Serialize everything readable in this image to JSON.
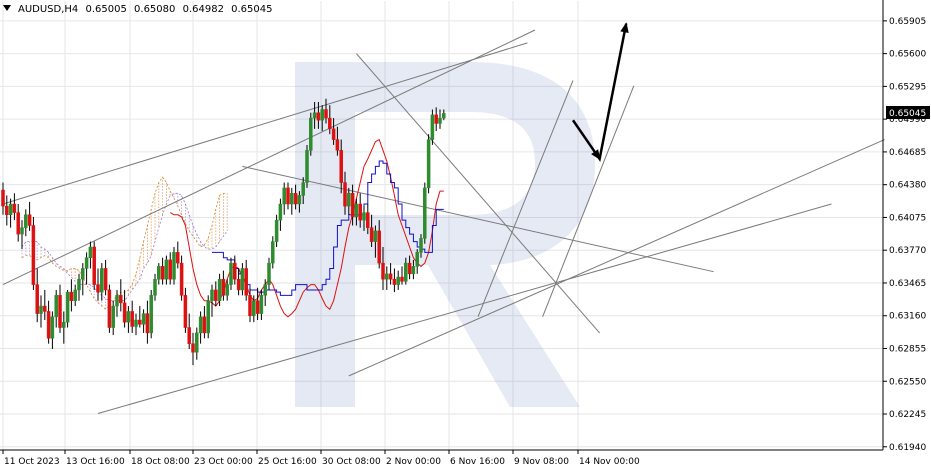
{
  "header": {
    "symbol": "AUDUSD,H4",
    "open": "0.65005",
    "high": "0.65080",
    "low": "0.64982",
    "close": "0.65045"
  },
  "price_tag": "0.65045",
  "chart_data": {
    "type": "candlestick",
    "symbol": "AUDUSD",
    "timeframe": "H4",
    "y_ticks": [
      "0.65905",
      "0.65600",
      "0.65295",
      "0.64990",
      "0.64685",
      "0.64380",
      "0.64075",
      "0.63770",
      "0.63465",
      "0.63160",
      "0.62855",
      "0.62550",
      "0.62245",
      "0.61940"
    ],
    "ylim": [
      0.6191,
      0.6609
    ],
    "x_labels": [
      "11 Oct 2023",
      "13 Oct 16:00",
      "18 Oct 08:00",
      "23 Oct 00:00",
      "25 Oct 16:00",
      "30 Oct 08:00",
      "2 Nov 00:00",
      "6 Nov 16:00",
      "9 Nov 08:00",
      "14 Nov 00:00"
    ],
    "colors": {
      "up": "#2e8b2e",
      "down": "#dd1111",
      "tenkan": "#dd1111",
      "kijun": "#1111cc",
      "cloud": "#d9822b",
      "cloud_alt": "#9a7bc8",
      "lines": "#7a7a7a",
      "arrow": "#000000",
      "grid": "#e6e6e6"
    },
    "candles": [
      [
        0.6433,
        0.644,
        0.641,
        0.6418
      ],
      [
        0.6418,
        0.6428,
        0.64,
        0.641
      ],
      [
        0.641,
        0.6425,
        0.6398,
        0.642
      ],
      [
        0.642,
        0.643,
        0.6405,
        0.6412
      ],
      [
        0.6412,
        0.642,
        0.6385,
        0.6392
      ],
      [
        0.6392,
        0.6405,
        0.6378,
        0.6398
      ],
      [
        0.6398,
        0.6415,
        0.639,
        0.641
      ],
      [
        0.641,
        0.6422,
        0.6395,
        0.64
      ],
      [
        0.64,
        0.6408,
        0.634,
        0.6345
      ],
      [
        0.6345,
        0.636,
        0.631,
        0.6318
      ],
      [
        0.6318,
        0.6335,
        0.6305,
        0.6325
      ],
      [
        0.6325,
        0.634,
        0.6312,
        0.632
      ],
      [
        0.632,
        0.633,
        0.629,
        0.6295
      ],
      [
        0.6295,
        0.632,
        0.6285,
        0.6315
      ],
      [
        0.6315,
        0.634,
        0.6305,
        0.6335
      ],
      [
        0.6335,
        0.6345,
        0.63,
        0.6305
      ],
      [
        0.6305,
        0.632,
        0.629,
        0.631
      ],
      [
        0.631,
        0.634,
        0.6305,
        0.6338
      ],
      [
        0.6338,
        0.635,
        0.632,
        0.633
      ],
      [
        0.633,
        0.6345,
        0.6325,
        0.634
      ],
      [
        0.634,
        0.6355,
        0.633,
        0.635
      ],
      [
        0.635,
        0.6365,
        0.6335,
        0.636
      ],
      [
        0.636,
        0.6375,
        0.6345,
        0.637
      ],
      [
        0.637,
        0.6385,
        0.636,
        0.638
      ],
      [
        0.638,
        0.6385,
        0.634,
        0.6345
      ],
      [
        0.6345,
        0.636,
        0.633,
        0.6338
      ],
      [
        0.6338,
        0.6365,
        0.633,
        0.636
      ],
      [
        0.636,
        0.6368,
        0.6335,
        0.634
      ],
      [
        0.634,
        0.6345,
        0.63,
        0.6305
      ],
      [
        0.6305,
        0.633,
        0.6298,
        0.6325
      ],
      [
        0.6325,
        0.634,
        0.6315,
        0.6335
      ],
      [
        0.6335,
        0.635,
        0.632,
        0.6328
      ],
      [
        0.6328,
        0.634,
        0.6305,
        0.631
      ],
      [
        0.631,
        0.6325,
        0.63,
        0.632
      ],
      [
        0.632,
        0.633,
        0.63,
        0.6306
      ],
      [
        0.6306,
        0.6318,
        0.6298,
        0.6312
      ],
      [
        0.6312,
        0.6325,
        0.6305,
        0.6308
      ],
      [
        0.6308,
        0.6322,
        0.63,
        0.6318
      ],
      [
        0.6318,
        0.633,
        0.629,
        0.63
      ],
      [
        0.63,
        0.634,
        0.6295,
        0.6335
      ],
      [
        0.6335,
        0.6355,
        0.633,
        0.635
      ],
      [
        0.635,
        0.6365,
        0.6345,
        0.6362
      ],
      [
        0.6362,
        0.637,
        0.6345,
        0.635
      ],
      [
        0.635,
        0.6372,
        0.6345,
        0.6368
      ],
      [
        0.6368,
        0.6375,
        0.6345,
        0.635
      ],
      [
        0.635,
        0.638,
        0.6345,
        0.6375
      ],
      [
        0.6375,
        0.6385,
        0.636,
        0.6365
      ],
      [
        0.6365,
        0.6372,
        0.633,
        0.6335
      ],
      [
        0.6335,
        0.6342,
        0.63,
        0.6305
      ],
      [
        0.6305,
        0.6318,
        0.6285,
        0.629
      ],
      [
        0.629,
        0.63,
        0.627,
        0.6282
      ],
      [
        0.6282,
        0.6305,
        0.6275,
        0.63
      ],
      [
        0.63,
        0.632,
        0.629,
        0.6315
      ],
      [
        0.6315,
        0.6325,
        0.6295,
        0.63
      ],
      [
        0.63,
        0.6335,
        0.6295,
        0.633
      ],
      [
        0.633,
        0.6345,
        0.6315,
        0.634
      ],
      [
        0.634,
        0.6348,
        0.6325,
        0.633
      ],
      [
        0.633,
        0.6355,
        0.6325,
        0.635
      ],
      [
        0.635,
        0.6358,
        0.633,
        0.6335
      ],
      [
        0.6335,
        0.635,
        0.633,
        0.6345
      ],
      [
        0.6345,
        0.637,
        0.634,
        0.6365
      ],
      [
        0.6365,
        0.6372,
        0.6345,
        0.635
      ],
      [
        0.635,
        0.636,
        0.6335,
        0.634
      ],
      [
        0.634,
        0.6365,
        0.6335,
        0.636
      ],
      [
        0.636,
        0.6368,
        0.633,
        0.6335
      ],
      [
        0.6335,
        0.6342,
        0.631,
        0.6316
      ],
      [
        0.6316,
        0.6335,
        0.631,
        0.633
      ],
      [
        0.633,
        0.6342,
        0.6312,
        0.6318
      ],
      [
        0.6318,
        0.634,
        0.6312,
        0.6335
      ],
      [
        0.6335,
        0.635,
        0.6325,
        0.6345
      ],
      [
        0.6345,
        0.637,
        0.634,
        0.6365
      ],
      [
        0.6365,
        0.639,
        0.636,
        0.6385
      ],
      [
        0.6385,
        0.641,
        0.638,
        0.6405
      ],
      [
        0.6405,
        0.6425,
        0.6395,
        0.642
      ],
      [
        0.642,
        0.644,
        0.641,
        0.6435
      ],
      [
        0.6435,
        0.644,
        0.6415,
        0.642
      ],
      [
        0.642,
        0.6435,
        0.641,
        0.643
      ],
      [
        0.643,
        0.6438,
        0.6415,
        0.642
      ],
      [
        0.642,
        0.6432,
        0.6412,
        0.6428
      ],
      [
        0.6428,
        0.6445,
        0.642,
        0.644
      ],
      [
        0.644,
        0.6475,
        0.6435,
        0.647
      ],
      [
        0.647,
        0.6505,
        0.6465,
        0.65
      ],
      [
        0.65,
        0.6515,
        0.649,
        0.6505
      ],
      [
        0.6505,
        0.6515,
        0.649,
        0.6498
      ],
      [
        0.6498,
        0.6512,
        0.6488,
        0.6508
      ],
      [
        0.6508,
        0.6518,
        0.6495,
        0.65
      ],
      [
        0.65,
        0.6512,
        0.6485,
        0.649
      ],
      [
        0.649,
        0.65,
        0.6475,
        0.648
      ],
      [
        0.648,
        0.6492,
        0.6465,
        0.647
      ],
      [
        0.647,
        0.648,
        0.643,
        0.644
      ],
      [
        0.644,
        0.645,
        0.641,
        0.6418
      ],
      [
        0.6418,
        0.6435,
        0.641,
        0.643
      ],
      [
        0.643,
        0.6438,
        0.64,
        0.6408
      ],
      [
        0.6408,
        0.6425,
        0.64,
        0.642
      ],
      [
        0.642,
        0.643,
        0.6398,
        0.6405
      ],
      [
        0.6405,
        0.6418,
        0.6395,
        0.6412
      ],
      [
        0.6412,
        0.642,
        0.6392,
        0.6398
      ],
      [
        0.6398,
        0.641,
        0.638,
        0.6385
      ],
      [
        0.6385,
        0.64,
        0.637,
        0.6395
      ],
      [
        0.6395,
        0.6405,
        0.636,
        0.6365
      ],
      [
        0.6365,
        0.638,
        0.634,
        0.635
      ],
      [
        0.635,
        0.6362,
        0.634,
        0.6355
      ],
      [
        0.6355,
        0.6365,
        0.6345,
        0.635
      ],
      [
        0.635,
        0.636,
        0.6338,
        0.6345
      ],
      [
        0.6345,
        0.6358,
        0.634,
        0.6352
      ],
      [
        0.6352,
        0.6362,
        0.6345,
        0.6348
      ],
      [
        0.6348,
        0.637,
        0.6345,
        0.6365
      ],
      [
        0.6365,
        0.6372,
        0.635,
        0.6355
      ],
      [
        0.6355,
        0.6368,
        0.635,
        0.6362
      ],
      [
        0.6362,
        0.6378,
        0.6355,
        0.6375
      ],
      [
        0.6375,
        0.6392,
        0.637,
        0.6388
      ],
      [
        0.6388,
        0.644,
        0.6383,
        0.6435
      ],
      [
        0.6435,
        0.6485,
        0.643,
        0.648
      ],
      [
        0.648,
        0.6508,
        0.6475,
        0.6503
      ],
      [
        0.6503,
        0.651,
        0.6488,
        0.6495
      ],
      [
        0.6495,
        0.6508,
        0.649,
        0.65
      ],
      [
        0.65,
        0.6508,
        0.6498,
        0.65045
      ]
    ],
    "tenkan": [
      0.6412,
      0.641,
      0.641,
      0.6408,
      0.64,
      0.638,
      0.636,
      0.6345,
      0.6335,
      0.633,
      0.633,
      0.6328,
      0.6325,
      0.633,
      0.6338,
      0.635,
      0.636,
      0.6362,
      0.636,
      0.6352,
      0.6345,
      0.6335,
      0.633,
      0.6332,
      0.634,
      0.6345,
      0.635,
      0.6345,
      0.6335,
      0.6325,
      0.6318,
      0.6315,
      0.6318,
      0.6322,
      0.633,
      0.6338,
      0.6342,
      0.6345,
      0.6345,
      0.634,
      0.6332,
      0.6325,
      0.6322,
      0.633,
      0.6345,
      0.636,
      0.638,
      0.6398,
      0.641,
      0.6425,
      0.644,
      0.6455,
      0.6462,
      0.647,
      0.6478,
      0.648,
      0.647,
      0.646,
      0.6445,
      0.6428,
      0.641,
      0.64,
      0.639,
      0.638,
      0.637,
      0.6365,
      0.6362,
      0.6365,
      0.6375,
      0.6395,
      0.642,
      0.6432,
      0.6432
    ],
    "kijun": [
      0.6375,
      0.6375,
      0.6375,
      0.637,
      0.6368,
      0.6368,
      0.636,
      0.6355,
      0.635,
      0.6345,
      0.634,
      0.634,
      0.6338,
      0.6338,
      0.634,
      0.634,
      0.634,
      0.6338,
      0.6335,
      0.6335,
      0.6335,
      0.634,
      0.6345,
      0.6345,
      0.6345,
      0.634,
      0.634,
      0.634,
      0.634,
      0.6345,
      0.635,
      0.636,
      0.638,
      0.64,
      0.6405,
      0.6405,
      0.641,
      0.641,
      0.641,
      0.641,
      0.642,
      0.644,
      0.6448,
      0.6455,
      0.646,
      0.6458,
      0.6448,
      0.644,
      0.6435,
      0.642,
      0.6405,
      0.6398,
      0.6392,
      0.6385,
      0.638,
      0.6378,
      0.6375,
      0.6375,
      0.64,
      0.6415,
      0.6415,
      0.6415
    ],
    "cloud": {
      "span_a": [
        0.637,
        0.6372,
        0.6372,
        0.637,
        0.6368,
        0.637,
        0.6372,
        0.637,
        0.6365,
        0.6362,
        0.636,
        0.6358,
        0.6358,
        0.636,
        0.636,
        0.6358,
        0.6352,
        0.6345,
        0.6338,
        0.6332,
        0.6328,
        0.6325,
        0.6322,
        0.6325,
        0.633,
        0.6335,
        0.6338,
        0.6338,
        0.634,
        0.6345,
        0.6355,
        0.637,
        0.6385,
        0.64,
        0.6415,
        0.643,
        0.644,
        0.6445,
        0.644,
        0.6432,
        0.6425,
        0.6418,
        0.641,
        0.6402,
        0.6395,
        0.639,
        0.6385,
        0.638,
        0.6382,
        0.6388,
        0.64,
        0.6415,
        0.6428,
        0.643,
        0.643
      ],
      "span_b": [
        0.638,
        0.6385,
        0.6385,
        0.6385,
        0.6385,
        0.638,
        0.6378,
        0.6375,
        0.637,
        0.6365,
        0.6362,
        0.636,
        0.6355,
        0.6352,
        0.6348,
        0.6345,
        0.6345,
        0.6345,
        0.6345,
        0.6342,
        0.6338,
        0.6335,
        0.6332,
        0.633,
        0.633,
        0.633,
        0.633,
        0.633,
        0.6335,
        0.634,
        0.6345,
        0.635,
        0.636,
        0.6365,
        0.6372,
        0.6385,
        0.6398,
        0.641,
        0.642,
        0.6428,
        0.643,
        0.643,
        0.6428,
        0.642,
        0.641,
        0.64,
        0.6392,
        0.6385,
        0.638,
        0.6378,
        0.6378,
        0.638,
        0.6385,
        0.639,
        0.6395
      ]
    },
    "trendlines": [
      {
        "from": [
          0,
          0.642
        ],
        "to": [
          138,
          0.657
        ]
      },
      {
        "from": [
          0,
          0.6345
        ],
        "to": [
          140,
          0.6582
        ]
      },
      {
        "from": [
          63,
          0.6455
        ],
        "to": [
          187,
          0.6357
        ]
      },
      {
        "from": [
          93,
          0.656
        ],
        "to": [
          157,
          0.63
        ]
      },
      {
        "from": [
          25,
          0.6225
        ],
        "to": [
          218,
          0.642
        ]
      },
      {
        "from": [
          91,
          0.626
        ],
        "to": [
          232,
          0.648
        ]
      },
      {
        "from": [
          125,
          0.6315
        ],
        "to": [
          150,
          0.6535
        ]
      },
      {
        "from": [
          142,
          0.6315
        ],
        "to": [
          166,
          0.653
        ]
      }
    ],
    "forecast_arrow": [
      [
        150,
        0.6498
      ],
      [
        157,
        0.6462
      ],
      [
        164,
        0.6588
      ]
    ]
  }
}
